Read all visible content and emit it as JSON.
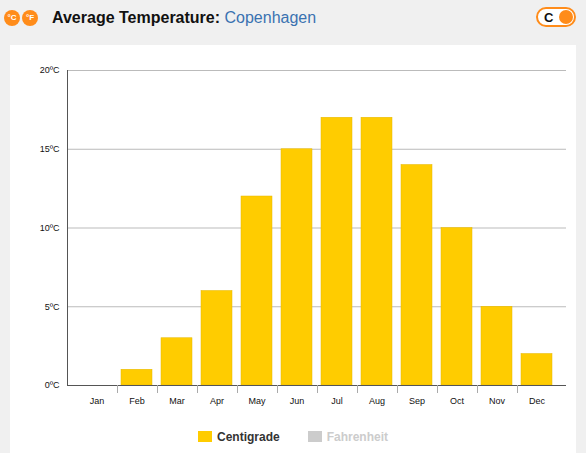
{
  "chart_data": {
    "type": "bar",
    "title": "Average Temperature:",
    "subtitle": "Copenhagen",
    "unit_buttons": [
      "°C",
      "°F"
    ],
    "unit_toggle": "C",
    "categories": [
      "Jan",
      "Feb",
      "Mar",
      "Apr",
      "May",
      "Jun",
      "Jul",
      "Aug",
      "Sep",
      "Oct",
      "Nov",
      "Dec"
    ],
    "series": [
      {
        "name": "Centigrade",
        "color": "#ffcc00",
        "values": [
          0,
          1,
          3,
          6,
          12,
          15,
          17,
          17,
          14,
          10,
          5,
          2
        ]
      },
      {
        "name": "Fahrenheit",
        "color": "#cccccc",
        "values": [
          null,
          null,
          null,
          null,
          null,
          null,
          null,
          null,
          null,
          null,
          null,
          null
        ]
      }
    ],
    "ylim": [
      0,
      20
    ],
    "yticks": [
      {
        "value": 0,
        "label": "0ºC"
      },
      {
        "value": 5,
        "label": "5ºC"
      },
      {
        "value": 10,
        "label": "10ºC"
      },
      {
        "value": 15,
        "label": "15ºC"
      },
      {
        "value": 20,
        "label": "20ºC"
      }
    ],
    "grid": true,
    "legend": "bottom"
  }
}
